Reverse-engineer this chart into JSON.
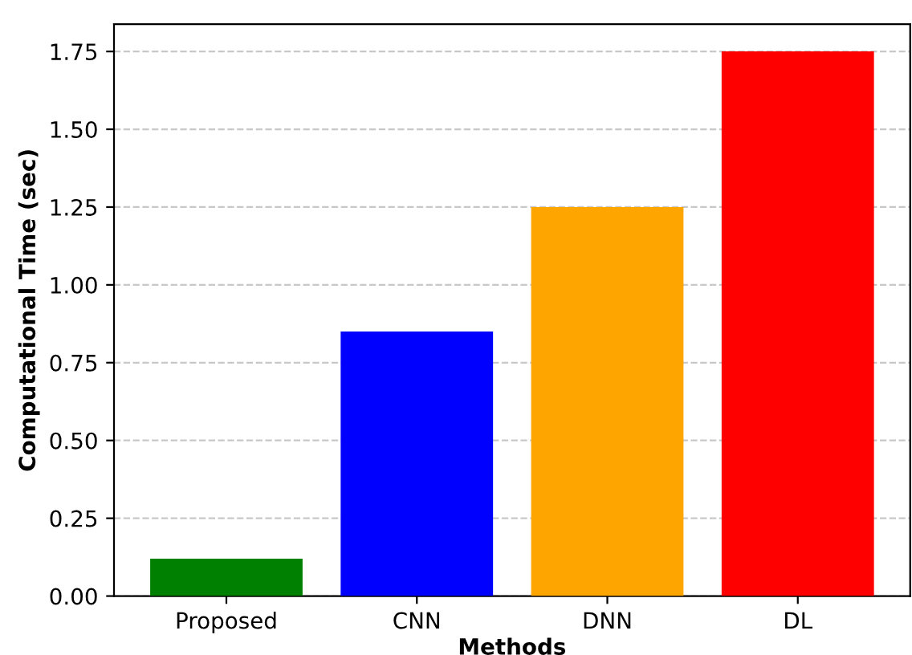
{
  "chart_data": {
    "type": "bar",
    "xlabel": "Methods",
    "ylabel": "Computational Time (sec)",
    "categories": [
      "Proposed",
      "CNN",
      "DNN",
      "DL"
    ],
    "values": [
      0.12,
      0.85,
      1.25,
      1.75
    ],
    "colors": [
      "#008000",
      "#0000ff",
      "#ffa500",
      "#ff0000"
    ],
    "ylim": [
      0,
      1.8375
    ],
    "yticks": [
      {
        "value": 0,
        "label": "0.00"
      },
      0.25,
      {
        "value": 0.5,
        "label": "0.50"
      },
      0.75,
      {
        "value": 1,
        "label": "1.00"
      },
      1.25,
      {
        "value": 1.5,
        "label": "1.50"
      },
      1.75
    ],
    "grid": "y"
  }
}
